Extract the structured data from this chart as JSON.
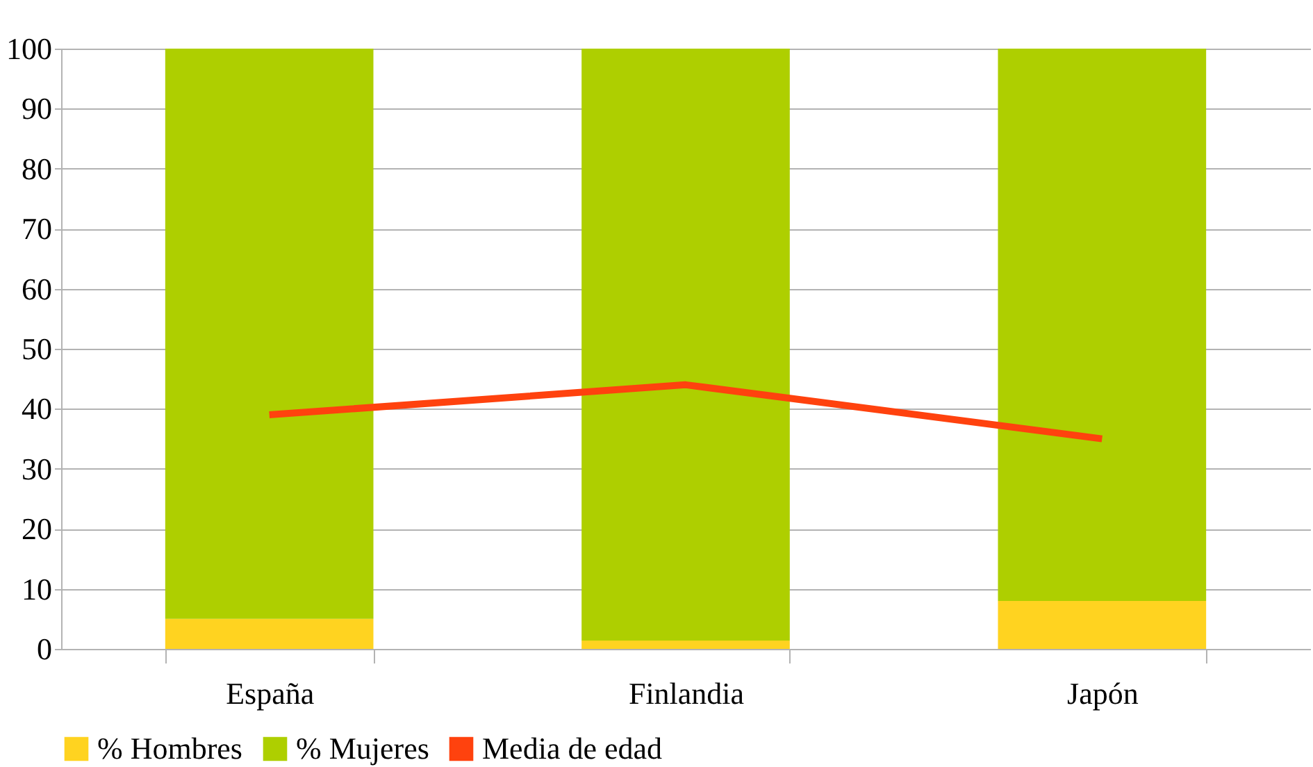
{
  "chart_data": {
    "type": "bar",
    "stacked": true,
    "categories": [
      "España",
      "Finlandia",
      "Japón"
    ],
    "series": [
      {
        "name": "% Hombres",
        "color": "#ffd320",
        "values": [
          5,
          1.4,
          8
        ]
      },
      {
        "name": "% Mujeres",
        "color": "#aecf00",
        "values": [
          95,
          98.6,
          92
        ]
      },
      {
        "name": "Media de edad",
        "type": "line",
        "color": "#ff420e",
        "values": [
          39,
          44,
          35
        ]
      }
    ],
    "ylim": [
      0,
      100
    ],
    "yticks": [
      0,
      10,
      20,
      30,
      40,
      50,
      60,
      70,
      80,
      90,
      100
    ],
    "grid": "y",
    "legend": "bottom"
  }
}
